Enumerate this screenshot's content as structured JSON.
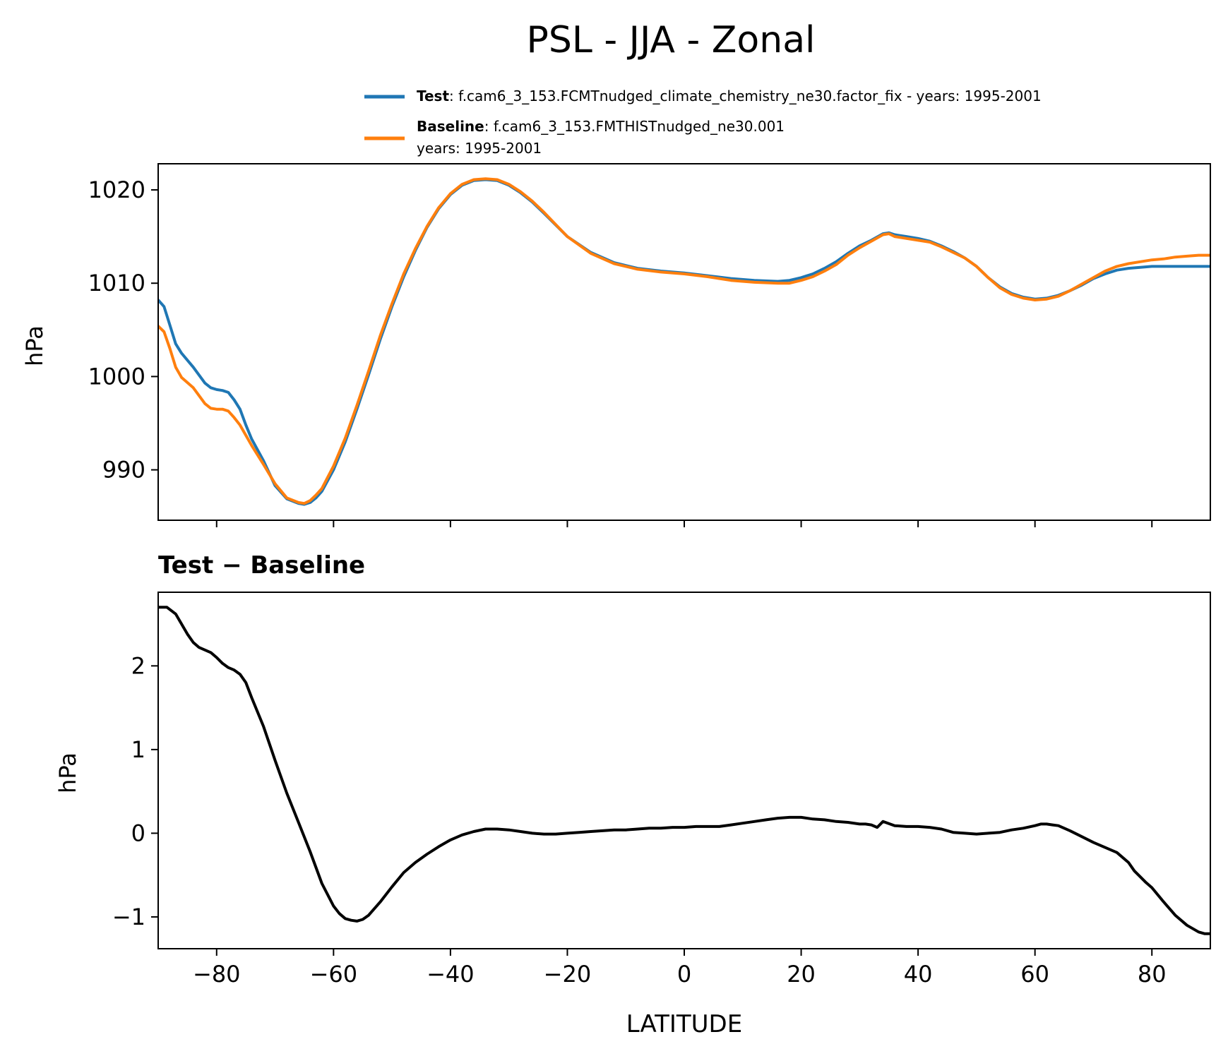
{
  "chart_data": [
    {
      "type": "line",
      "title": "PSL - JJA - Zonal",
      "xlabel": "",
      "ylabel": "hPa",
      "xlim": [
        -90,
        90
      ],
      "ylim": [
        984.6,
        1022.8
      ],
      "xticks": [
        -80,
        -60,
        -40,
        -20,
        0,
        20,
        40,
        60,
        80
      ],
      "yticks": [
        990,
        1000,
        1010,
        1020
      ],
      "ytick_labels": [
        "990",
        "1000",
        "1010",
        "1020"
      ],
      "grid": false,
      "legend": {
        "placement": "above-plot",
        "entries": [
          {
            "bold": "Test",
            "text": ": f.cam6_3_153.FCMTnudged_climate_chemistry_ne30.factor_fix - years: 1995-2001",
            "line2": "",
            "color": "#1f77b4"
          },
          {
            "bold": "Baseline",
            "text": ": f.cam6_3_153.FMTHISTnudged_ne30.001",
            "line2": "years: 1995-2001",
            "color": "#ff7f0e"
          }
        ]
      },
      "series": [
        {
          "name": "Test",
          "color": "#1f77b4",
          "x": [
            -90,
            -89,
            -88,
            -87,
            -86,
            -84,
            -82,
            -81,
            -80,
            -79,
            -78,
            -77,
            -76,
            -75,
            -74,
            -72,
            -70,
            -68,
            -66,
            -65,
            -64,
            -63,
            -62,
            -60,
            -58,
            -56,
            -54,
            -52,
            -50,
            -48,
            -46,
            -44,
            -42,
            -40,
            -38,
            -36,
            -34,
            -32,
            -30,
            -28,
            -26,
            -24,
            -20,
            -16,
            -12,
            -8,
            -4,
            0,
            4,
            8,
            12,
            16,
            18,
            20,
            22,
            24,
            26,
            28,
            30,
            32,
            34,
            35,
            36,
            38,
            40,
            42,
            44,
            46,
            48,
            50,
            52,
            54,
            56,
            58,
            60,
            62,
            64,
            66,
            68,
            70,
            72,
            74,
            76,
            78,
            80,
            82,
            84,
            86,
            88,
            90
          ],
          "values": [
            1008.2,
            1007.5,
            1005.5,
            1003.5,
            1002.5,
            1001.0,
            999.3,
            998.8,
            998.6,
            998.5,
            998.3,
            997.5,
            996.5,
            994.8,
            993.3,
            991.0,
            988.3,
            986.9,
            986.4,
            986.3,
            986.5,
            987.0,
            987.7,
            990.0,
            993.0,
            996.5,
            1000.2,
            1004.0,
            1007.5,
            1010.7,
            1013.5,
            1016.0,
            1018.0,
            1019.5,
            1020.5,
            1021.0,
            1021.1,
            1021.0,
            1020.5,
            1019.7,
            1018.7,
            1017.5,
            1015.0,
            1013.3,
            1012.2,
            1011.6,
            1011.3,
            1011.1,
            1010.8,
            1010.5,
            1010.3,
            1010.2,
            1010.3,
            1010.6,
            1011.0,
            1011.6,
            1012.3,
            1013.2,
            1014.0,
            1014.6,
            1015.3,
            1015.4,
            1015.2,
            1015.0,
            1014.8,
            1014.5,
            1014.0,
            1013.4,
            1012.7,
            1011.8,
            1010.6,
            1009.6,
            1008.9,
            1008.5,
            1008.3,
            1008.4,
            1008.7,
            1009.2,
            1009.8,
            1010.5,
            1011.0,
            1011.4,
            1011.6,
            1011.7,
            1011.8,
            1011.8,
            1011.8,
            1011.8,
            1011.8,
            1011.8
          ]
        },
        {
          "name": "Baseline",
          "color": "#ff7f0e",
          "x": [
            -90,
            -89,
            -88,
            -87,
            -86,
            -84,
            -82,
            -81,
            -80,
            -79,
            -78,
            -77,
            -76,
            -75,
            -74,
            -72,
            -70,
            -68,
            -66,
            -65,
            -64,
            -63,
            -62,
            -60,
            -58,
            -56,
            -54,
            -52,
            -50,
            -48,
            -46,
            -44,
            -42,
            -40,
            -38,
            -36,
            -34,
            -32,
            -30,
            -28,
            -26,
            -24,
            -20,
            -16,
            -12,
            -8,
            -4,
            0,
            4,
            8,
            12,
            16,
            18,
            20,
            22,
            24,
            26,
            28,
            30,
            32,
            34,
            35,
            36,
            38,
            40,
            42,
            44,
            46,
            48,
            50,
            52,
            54,
            56,
            58,
            60,
            62,
            64,
            66,
            68,
            70,
            72,
            74,
            76,
            78,
            80,
            82,
            84,
            86,
            88,
            90
          ],
          "values": [
            1005.4,
            1004.8,
            1003.0,
            1001.0,
            999.9,
            998.8,
            997.1,
            996.6,
            996.5,
            996.5,
            996.3,
            995.6,
            994.8,
            993.7,
            992.6,
            990.6,
            988.5,
            987.0,
            986.5,
            986.4,
            986.7,
            987.3,
            988.0,
            990.4,
            993.4,
            996.9,
            1000.6,
            1004.4,
            1007.8,
            1011.0,
            1013.7,
            1016.1,
            1018.1,
            1019.6,
            1020.6,
            1021.1,
            1021.2,
            1021.1,
            1020.6,
            1019.8,
            1018.8,
            1017.6,
            1015.0,
            1013.2,
            1012.1,
            1011.5,
            1011.2,
            1011.0,
            1010.7,
            1010.3,
            1010.1,
            1010.0,
            1010.0,
            1010.3,
            1010.7,
            1011.3,
            1012.0,
            1013.0,
            1013.8,
            1014.5,
            1015.2,
            1015.3,
            1015.0,
            1014.8,
            1014.6,
            1014.4,
            1013.9,
            1013.3,
            1012.7,
            1011.8,
            1010.6,
            1009.5,
            1008.8,
            1008.4,
            1008.2,
            1008.3,
            1008.6,
            1009.2,
            1009.9,
            1010.6,
            1011.3,
            1011.8,
            1012.1,
            1012.3,
            1012.5,
            1012.6,
            1012.8,
            1012.9,
            1013.0,
            1013.0
          ]
        }
      ]
    },
    {
      "type": "line",
      "title": "Test − Baseline",
      "xlabel": "LATITUDE",
      "ylabel": "hPa",
      "xlim": [
        -90,
        90
      ],
      "ylim": [
        -1.38,
        2.88
      ],
      "xticks": [
        -80,
        -60,
        -40,
        -20,
        0,
        20,
        40,
        60,
        80
      ],
      "xtick_labels": [
        "−80",
        "−60",
        "−40",
        "−20",
        "0",
        "20",
        "40",
        "60",
        "80"
      ],
      "yticks": [
        -1,
        0,
        1,
        2
      ],
      "ytick_labels": [
        "−1",
        "0",
        "1",
        "2"
      ],
      "grid": false,
      "series": [
        {
          "color": "#000000",
          "x": [
            -90,
            -88.5,
            -87,
            -86,
            -85,
            -84,
            -83,
            -82,
            -81,
            -80,
            -79,
            -78,
            -77,
            -76,
            -75,
            -74,
            -72,
            -70,
            -68,
            -66,
            -64,
            -62,
            -60,
            -59,
            -58,
            -57,
            -56,
            -55,
            -54,
            -52,
            -50,
            -48,
            -46,
            -44,
            -42,
            -40,
            -38,
            -36,
            -34,
            -32,
            -30,
            -28,
            -26,
            -24,
            -22,
            -20,
            -18,
            -16,
            -14,
            -12,
            -10,
            -8,
            -6,
            -4,
            -2,
            0,
            2,
            4,
            6,
            8,
            10,
            12,
            14,
            16,
            18,
            20,
            22,
            24,
            26,
            28,
            30,
            31,
            32,
            33,
            34,
            36,
            38,
            40,
            42,
            44,
            46,
            48,
            50,
            52,
            54,
            56,
            58,
            60,
            61,
            62,
            63,
            64,
            66,
            68,
            70,
            72,
            74,
            76,
            77,
            78,
            79,
            80,
            82,
            84,
            86,
            88,
            89,
            90
          ],
          "values": [
            2.7,
            2.7,
            2.62,
            2.5,
            2.38,
            2.28,
            2.22,
            2.19,
            2.16,
            2.1,
            2.03,
            1.98,
            1.95,
            1.9,
            1.8,
            1.62,
            1.28,
            0.87,
            0.48,
            0.13,
            -0.22,
            -0.6,
            -0.87,
            -0.96,
            -1.02,
            -1.04,
            -1.05,
            -1.03,
            -0.98,
            -0.82,
            -0.64,
            -0.47,
            -0.35,
            -0.25,
            -0.16,
            -0.08,
            -0.02,
            0.02,
            0.05,
            0.05,
            0.04,
            0.02,
            0.0,
            -0.01,
            -0.01,
            0.0,
            0.01,
            0.02,
            0.03,
            0.04,
            0.04,
            0.05,
            0.06,
            0.06,
            0.07,
            0.07,
            0.08,
            0.08,
            0.08,
            0.1,
            0.12,
            0.14,
            0.16,
            0.18,
            0.19,
            0.19,
            0.17,
            0.16,
            0.14,
            0.13,
            0.11,
            0.11,
            0.1,
            0.07,
            0.14,
            0.09,
            0.08,
            0.08,
            0.07,
            0.05,
            0.01,
            0.0,
            -0.01,
            0.0,
            0.01,
            0.04,
            0.06,
            0.09,
            0.11,
            0.11,
            0.1,
            0.09,
            0.03,
            -0.04,
            -0.11,
            -0.17,
            -0.23,
            -0.35,
            -0.45,
            -0.52,
            -0.59,
            -0.65,
            -0.82,
            -0.98,
            -1.1,
            -1.18,
            -1.2,
            -1.2
          ]
        }
      ]
    }
  ]
}
